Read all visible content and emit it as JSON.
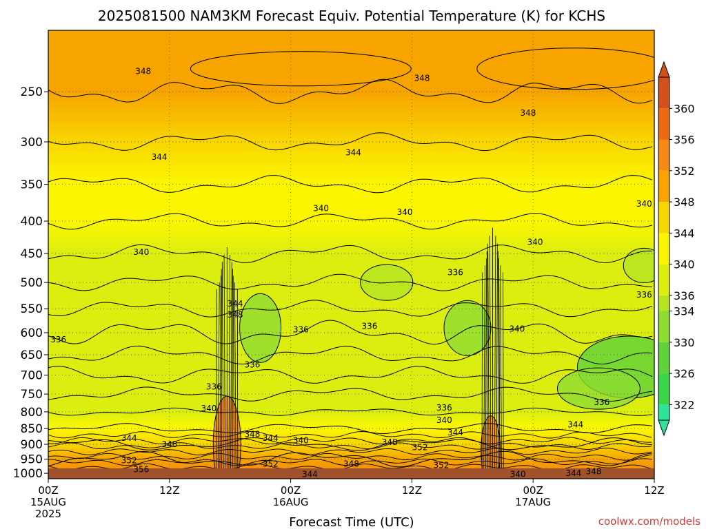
{
  "chart_data": {
    "type": "heatmap",
    "title": "2025081500 NAM3KM Forecast Equiv. Potential Temperature (K) for KCHS",
    "xlabel": "Forecast Time (UTC)",
    "ylabel": "",
    "x_ticks": [
      {
        "hour": 0,
        "lines": [
          "00Z",
          "15AUG",
          "2025"
        ]
      },
      {
        "hour": 12,
        "lines": [
          "12Z"
        ]
      },
      {
        "hour": 24,
        "lines": [
          "00Z",
          "16AUG"
        ]
      },
      {
        "hour": 36,
        "lines": [
          "12Z"
        ]
      },
      {
        "hour": 48,
        "lines": [
          "00Z",
          "17AUG"
        ]
      },
      {
        "hour": 60,
        "lines": [
          "12Z"
        ]
      }
    ],
    "xlim_hours": [
      0,
      60
    ],
    "y_scale": "log-pressure",
    "y_ticks": [
      250,
      300,
      350,
      400,
      450,
      500,
      550,
      600,
      650,
      700,
      750,
      800,
      850,
      900,
      950,
      1000
    ],
    "ylim_hPa": [
      1020,
      200
    ],
    "grid": true,
    "colorbar": {
      "ticks": [
        360,
        356,
        352,
        348,
        344,
        340,
        336,
        334,
        330,
        326,
        322
      ],
      "range": [
        320,
        364
      ],
      "colors": [
        {
          "v": 322,
          "c": "#2fe39a"
        },
        {
          "v": 326,
          "c": "#3bd44a"
        },
        {
          "v": 330,
          "c": "#5fd13a"
        },
        {
          "v": 334,
          "c": "#8edc32"
        },
        {
          "v": 336,
          "c": "#b4e320"
        },
        {
          "v": 340,
          "c": "#dcee10"
        },
        {
          "v": 344,
          "c": "#fbf600"
        },
        {
          "v": 348,
          "c": "#f8d600"
        },
        {
          "v": 352,
          "c": "#f7a400"
        },
        {
          "v": 356,
          "c": "#f28a14"
        },
        {
          "v": 360,
          "c": "#ea6a14"
        },
        {
          "v": 364,
          "c": "#d2501c"
        }
      ]
    },
    "profile_background": [
      {
        "p": 200,
        "theta": 350.5
      },
      {
        "p": 250,
        "theta": 349.5
      },
      {
        "p": 300,
        "theta": 346
      },
      {
        "p": 350,
        "theta": 344
      },
      {
        "p": 400,
        "theta": 341
      },
      {
        "p": 450,
        "theta": 339
      },
      {
        "p": 500,
        "theta": 338
      },
      {
        "p": 550,
        "theta": 337
      },
      {
        "p": 600,
        "theta": 337
      },
      {
        "p": 650,
        "theta": 336.5
      },
      {
        "p": 700,
        "theta": 337
      },
      {
        "p": 750,
        "theta": 338
      },
      {
        "p": 800,
        "theta": 340
      },
      {
        "p": 850,
        "theta": 343.5
      },
      {
        "p": 900,
        "theta": 348
      },
      {
        "p": 950,
        "theta": 352
      },
      {
        "p": 1000,
        "theta": 354
      }
    ],
    "ground_color": "#a0522d",
    "contour_labels": [
      {
        "text": "348",
        "hour": 9.4,
        "p": 232
      },
      {
        "text": "348",
        "hour": 37.0,
        "p": 238
      },
      {
        "text": "348",
        "hour": 47.5,
        "p": 270
      },
      {
        "text": "344",
        "hour": 11.0,
        "p": 317
      },
      {
        "text": "344",
        "hour": 30.2,
        "p": 312
      },
      {
        "text": "340",
        "hour": 27.0,
        "p": 382
      },
      {
        "text": "340",
        "hour": 35.3,
        "p": 387
      },
      {
        "text": "340",
        "hour": 59.0,
        "p": 376
      },
      {
        "text": "340",
        "hour": 9.2,
        "p": 448
      },
      {
        "text": "340",
        "hour": 48.2,
        "p": 432
      },
      {
        "text": "336",
        "hour": 40.3,
        "p": 482
      },
      {
        "text": "336",
        "hour": 59.0,
        "p": 523
      },
      {
        "text": "344",
        "hour": 18.5,
        "p": 540
      },
      {
        "text": "348",
        "hour": 18.5,
        "p": 562
      },
      {
        "text": "336",
        "hour": 25.0,
        "p": 593
      },
      {
        "text": "336",
        "hour": 31.8,
        "p": 586
      },
      {
        "text": "340",
        "hour": 46.4,
        "p": 592
      },
      {
        "text": "336",
        "hour": 1.0,
        "p": 615
      },
      {
        "text": "336",
        "hour": 20.2,
        "p": 674
      },
      {
        "text": "336",
        "hour": 16.4,
        "p": 730
      },
      {
        "text": "340",
        "hour": 15.9,
        "p": 790
      },
      {
        "text": "336",
        "hour": 39.2,
        "p": 788
      },
      {
        "text": "340",
        "hour": 39.2,
        "p": 825
      },
      {
        "text": "336",
        "hour": 54.8,
        "p": 773
      },
      {
        "text": "344",
        "hour": 8.0,
        "p": 880
      },
      {
        "text": "348",
        "hour": 12.0,
        "p": 900
      },
      {
        "text": "348",
        "hour": 20.2,
        "p": 868
      },
      {
        "text": "344",
        "hour": 22.0,
        "p": 880
      },
      {
        "text": "340",
        "hour": 25.0,
        "p": 888
      },
      {
        "text": "344",
        "hour": 40.3,
        "p": 862
      },
      {
        "text": "344",
        "hour": 52.2,
        "p": 838
      },
      {
        "text": "348",
        "hour": 33.8,
        "p": 893
      },
      {
        "text": "352",
        "hour": 36.8,
        "p": 910
      },
      {
        "text": "352",
        "hour": 8.0,
        "p": 955
      },
      {
        "text": "356",
        "hour": 9.2,
        "p": 986
      },
      {
        "text": "352",
        "hour": 22.0,
        "p": 966
      },
      {
        "text": "348",
        "hour": 30.0,
        "p": 966
      },
      {
        "text": "352",
        "hour": 38.9,
        "p": 972
      },
      {
        "text": "344",
        "hour": 25.9,
        "p": 1003
      },
      {
        "text": "340",
        "hour": 46.5,
        "p": 1003
      },
      {
        "text": "344",
        "hour": 52.0,
        "p": 1000
      },
      {
        "text": "348",
        "hour": 54.0,
        "p": 993
      }
    ]
  },
  "credit": "coolwx.com/models"
}
